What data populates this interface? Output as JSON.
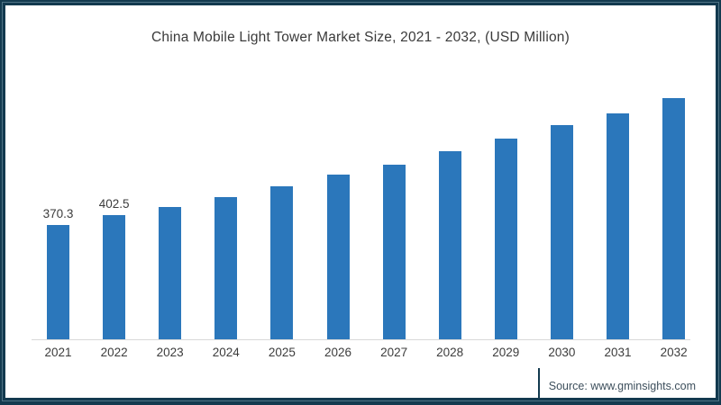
{
  "frame": {
    "border_color": "#133a4f",
    "inner_stripe_color": "#4f7486"
  },
  "chart_data": {
    "type": "bar",
    "title": "China Mobile Light Tower Market Size, 2021 - 2032, (USD Million)",
    "categories": [
      "2021",
      "2022",
      "2023",
      "2024",
      "2025",
      "2026",
      "2027",
      "2028",
      "2029",
      "2030",
      "2031",
      "2032"
    ],
    "values": [
      370.3,
      402.5,
      429,
      461,
      496,
      534,
      567,
      610,
      651,
      695,
      733,
      783
    ],
    "data_labels": [
      "370.3",
      "402.5",
      "",
      "",
      "",
      "",
      "",
      "",
      "",
      "",
      "",
      ""
    ],
    "bar_color": "#2b77bb",
    "axis_line_color": "#d9d9d9",
    "text_color": "#3c3c3c",
    "xlabel": "",
    "ylabel": "",
    "ylim": [
      0,
      800
    ],
    "grid": "off",
    "legend": "none"
  },
  "source": {
    "label": "Source: www.gminsights.com"
  }
}
